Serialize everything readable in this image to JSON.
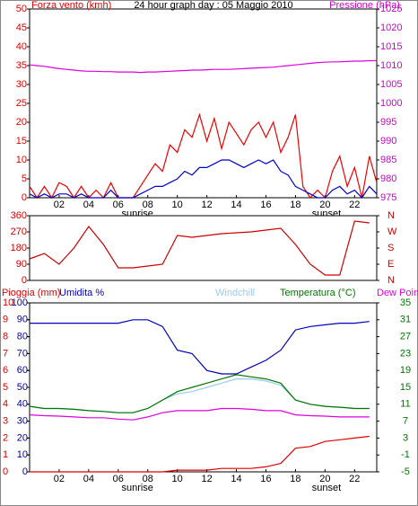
{
  "chart_data": [
    {
      "type": "line",
      "title": "24 hour graph day : 05 Maggio 2010",
      "ylabel": "Forza vento (kmh)",
      "y2label": "Pressione (hPa)",
      "ylabel_color": "#dd0000",
      "y2label_color": "#cc00cc",
      "xlim": [
        0,
        23.5
      ],
      "xticks": [
        {
          "value": 2,
          "label": "02"
        },
        {
          "value": 4,
          "label": "04"
        },
        {
          "value": 6,
          "label": "06"
        },
        {
          "value": 8,
          "label": "08"
        },
        10,
        12,
        14,
        16,
        18,
        20,
        22
      ],
      "annotations": [
        "sunrise",
        "sunset"
      ],
      "ylim": [
        0,
        50
      ],
      "yticks": [
        0,
        5,
        10,
        15,
        20,
        25,
        30,
        35,
        40,
        45,
        50
      ],
      "y2lim": [
        975,
        1025
      ],
      "y2ticks": [
        975,
        980,
        985,
        990,
        995,
        1000,
        1005,
        1010,
        1015,
        1020,
        1025
      ],
      "x": [
        0,
        0.5,
        1,
        1.5,
        2,
        2.5,
        3,
        3.5,
        4,
        4.5,
        5,
        5.5,
        6,
        6.5,
        7,
        7.5,
        8,
        8.5,
        9,
        9.5,
        10,
        10.5,
        11,
        11.5,
        12,
        12.5,
        13,
        13.5,
        14,
        14.5,
        15,
        15.5,
        16,
        16.5,
        17,
        17.5,
        18,
        18.5,
        19,
        19.5,
        20,
        20.5,
        21,
        21.5,
        22,
        22.5,
        23,
        23.5
      ],
      "series": [
        {
          "color": "#ee0000",
          "axis": "y",
          "values": [
            3,
            0,
            3,
            0,
            4,
            3,
            0,
            3,
            0,
            2,
            0,
            4,
            0,
            0,
            0,
            3,
            6,
            9,
            7,
            14,
            12,
            18,
            16,
            22,
            15,
            21,
            13,
            20,
            17,
            14,
            18,
            20,
            16,
            20,
            12,
            16,
            22,
            3,
            0,
            2,
            0,
            7,
            11,
            3,
            8,
            0,
            11,
            4
          ]
        },
        {
          "color": "#0000cc",
          "axis": "y",
          "values": [
            1,
            0,
            1,
            0,
            1,
            1,
            0,
            1,
            0,
            0,
            0,
            2,
            0,
            0,
            0,
            1,
            2,
            3,
            3,
            4,
            5,
            7,
            6,
            8,
            8,
            9,
            10,
            10,
            9,
            8,
            9,
            10,
            9,
            10,
            7,
            6,
            3,
            2,
            1,
            0,
            0,
            2,
            3,
            1,
            2,
            0,
            3,
            1
          ]
        },
        {
          "color": "#dd00dd",
          "axis": "y2",
          "values": [
            1010.2,
            1010,
            1009.8,
            1009.5,
            1009.2,
            1009,
            1008.8,
            1008.6,
            1008.5,
            1008.5,
            1008.4,
            1008.4,
            1008.3,
            1008.3,
            1008.3,
            1008.2,
            1008.3,
            1008.3,
            1008.4,
            1008.5,
            1008.6,
            1008.7,
            1008.8,
            1008.8,
            1008.9,
            1009,
            1009,
            1009,
            1009.1,
            1009.2,
            1009.3,
            1009.4,
            1009.5,
            1009.6,
            1009.8,
            1010,
            1010.2,
            1010.4,
            1010.6,
            1010.8,
            1010.9,
            1011,
            1011,
            1011.1,
            1011.2,
            1011.2,
            1011.3,
            1011.3
          ]
        }
      ]
    },
    {
      "type": "line",
      "xlim": [
        0,
        23.5
      ],
      "ylim": [
        0,
        360
      ],
      "yticks": [
        0,
        90,
        180,
        270,
        360
      ],
      "y2lim": [
        0,
        360
      ],
      "y2ticks": [
        {
          "value": 0,
          "label": "N"
        },
        {
          "value": 90,
          "label": "E"
        },
        {
          "value": 180,
          "label": "S"
        },
        {
          "value": 270,
          "label": "W"
        },
        {
          "value": 360,
          "label": "N"
        }
      ],
      "x": [
        0,
        1,
        2,
        3,
        4,
        5,
        6,
        7,
        8,
        9,
        10,
        11,
        12,
        13,
        14,
        15,
        16,
        17,
        18,
        19,
        20,
        21,
        22,
        23
      ],
      "series": [
        {
          "color": "#cc0000",
          "axis": "y",
          "values": [
            120,
            150,
            90,
            180,
            300,
            200,
            70,
            70,
            80,
            90,
            250,
            240,
            250,
            260,
            265,
            270,
            280,
            290,
            200,
            90,
            30,
            30,
            330,
            320
          ]
        }
      ]
    },
    {
      "type": "line",
      "xlim": [
        0,
        23.5
      ],
      "xticks": [
        {
          "value": 2,
          "label": "02"
        },
        {
          "value": 4,
          "label": "04"
        },
        {
          "value": 6,
          "label": "06"
        },
        {
          "value": 8,
          "label": "08"
        },
        10,
        12,
        14,
        16,
        18,
        20,
        22
      ],
      "annotations": [
        "sunrise",
        "sunset"
      ],
      "ylim": [
        0,
        100
      ],
      "yticks": [
        0,
        10,
        20,
        30,
        40,
        50,
        60,
        70,
        80,
        90,
        100
      ],
      "y2lim": [
        -5,
        35
      ],
      "y2ticks": [
        -5,
        -1,
        3,
        7,
        11,
        15,
        19,
        23,
        27,
        31,
        35
      ],
      "y3lim": [
        0,
        10
      ],
      "y3ticks": [
        0,
        1,
        2,
        3,
        4,
        5,
        6,
        7,
        8,
        9,
        10
      ],
      "x": [
        0,
        1,
        2,
        3,
        4,
        5,
        6,
        7,
        8,
        9,
        10,
        11,
        12,
        13,
        14,
        15,
        16,
        17,
        18,
        19,
        20,
        21,
        22,
        23
      ],
      "series": [
        {
          "name": "Pioggia (mm)",
          "color": "#dd0000",
          "axis": "y3",
          "values": [
            0,
            0,
            0,
            0,
            0,
            0,
            0,
            0,
            0,
            0,
            0.1,
            0.1,
            0.1,
            0.2,
            0.2,
            0.2,
            0.3,
            0.5,
            1.4,
            1.5,
            1.8,
            1.9,
            2.0,
            2.1
          ]
        },
        {
          "name": "Umidita %",
          "color": "#0000bb",
          "axis": "y",
          "values": [
            88,
            88,
            88,
            88,
            88,
            88,
            88,
            90,
            90,
            86,
            72,
            70,
            60,
            58,
            58,
            62,
            66,
            72,
            84,
            86,
            87,
            88,
            88,
            89
          ]
        },
        {
          "name": "Windchill",
          "color": "#99ccee",
          "axis": "y2",
          "values": [
            10.5,
            10,
            10,
            9.8,
            9.5,
            9.3,
            9,
            9,
            10,
            12,
            13.5,
            14,
            15,
            16,
            17,
            17,
            16.5,
            15.5,
            12,
            11,
            10.5,
            10.3,
            10,
            10
          ]
        },
        {
          "name": "Temperatura (°C)",
          "color": "#007700",
          "axis": "y2",
          "values": [
            10.5,
            10,
            10,
            9.8,
            9.5,
            9.3,
            9,
            9,
            10,
            12,
            14,
            15,
            16,
            17,
            18,
            17.5,
            17,
            16,
            12,
            11,
            10.5,
            10.3,
            10,
            10
          ]
        },
        {
          "name": "Dew Point",
          "color": "#dd00dd",
          "axis": "y2",
          "values": [
            8.5,
            8.3,
            8.2,
            8,
            7.8,
            7.8,
            7.5,
            7.3,
            8,
            9,
            9.5,
            9.5,
            9.5,
            10,
            10,
            9.8,
            9.5,
            9.5,
            8.5,
            8.3,
            8.2,
            8,
            8,
            8
          ]
        }
      ]
    }
  ]
}
